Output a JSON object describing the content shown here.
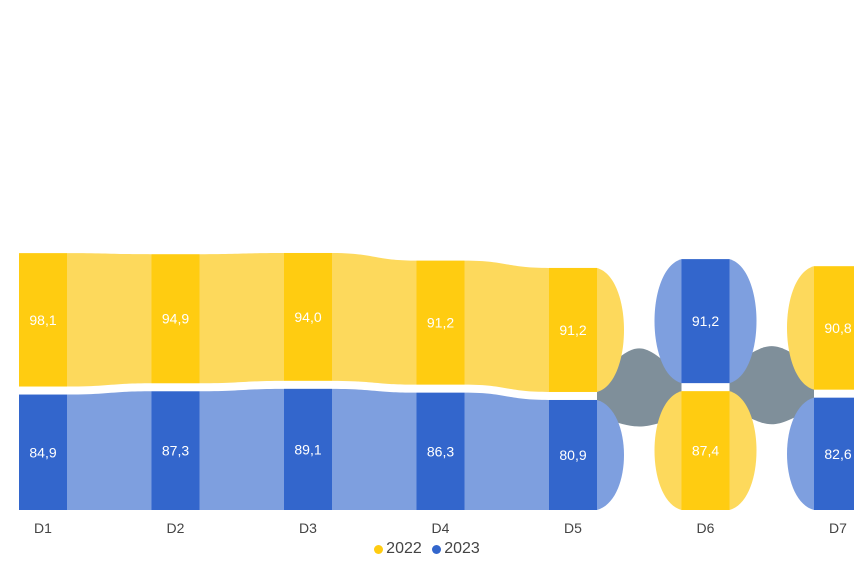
{
  "chart_data": {
    "type": "bar",
    "subtype": "ribbon-stacked",
    "categories": [
      "D1",
      "D2",
      "D3",
      "D4",
      "D5",
      "D6",
      "D7"
    ],
    "series": [
      {
        "name": "2022",
        "color": "#FFCC11",
        "ribbon_color": "#FDD95C",
        "values": [
          98.1,
          94.9,
          94.0,
          91.2,
          91.2,
          87.4,
          90.8
        ],
        "labels": [
          "98,1",
          "94,9",
          "94,0",
          "91,2",
          "91,2",
          "87,4",
          "90,8"
        ]
      },
      {
        "name": "2023",
        "color": "#3366CC",
        "ribbon_color": "#7E9FDF",
        "values": [
          84.9,
          87.3,
          89.1,
          86.3,
          80.9,
          91.2,
          82.6
        ],
        "labels": [
          "84,9",
          "87,3",
          "89,1",
          "86,3",
          "80,9",
          "91,2",
          "82,6"
        ]
      }
    ],
    "sort": "larger value on top",
    "crossing_color": "#7F8F9A",
    "label_color": "#ffffff",
    "grid": false,
    "legend": "bottom"
  }
}
